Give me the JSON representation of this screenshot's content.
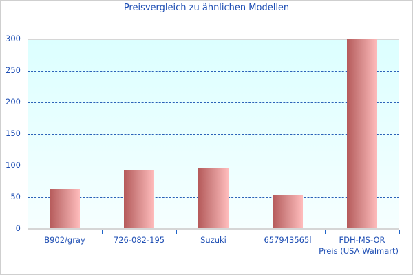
{
  "chart_data": {
    "type": "bar",
    "title": "Preisvergleich zu ähnlichen Modellen",
    "xlabel": "Preis (USA Walmart)",
    "ylabel": "",
    "categories": [
      "B902/gray",
      "726-082-195",
      "Suzuki",
      "657943565l",
      "FDH-MS-OR"
    ],
    "values": [
      63,
      92,
      96,
      54,
      300
    ],
    "ylim": [
      0,
      300
    ],
    "yticks": [
      0,
      50,
      100,
      150,
      200,
      250,
      300
    ],
    "grid": true,
    "legend": null,
    "colors": {
      "bar_dark": "#b55a5a",
      "bar_light": "#ffbcbc",
      "text": "#1f4fb4",
      "grid": "#2a62b8",
      "plot_bg_top": "#dcffff"
    }
  },
  "labels": {
    "title": "Preisvergleich zu ähnlichen Modellen",
    "xtitle": "Preis (USA Walmart)",
    "y": [
      "0",
      "50",
      "100",
      "150",
      "200",
      "250",
      "300"
    ],
    "x": [
      "B902/gray",
      "726-082-195",
      "Suzuki",
      "657943565l",
      "FDH-MS-OR"
    ]
  }
}
